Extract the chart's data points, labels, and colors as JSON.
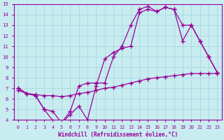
{
  "background_color": "#c8ecf0",
  "grid_color": "#aad8e0",
  "line_color": "#990099",
  "xlabel": "Windchill (Refroidissement éolien,°C)",
  "xlim": [
    -0.5,
    23.5
  ],
  "ylim": [
    4,
    15
  ],
  "xticks": [
    0,
    1,
    2,
    3,
    4,
    5,
    6,
    7,
    8,
    9,
    10,
    11,
    12,
    13,
    14,
    15,
    16,
    17,
    18,
    19,
    20,
    21,
    22,
    23
  ],
  "yticks": [
    4,
    5,
    6,
    7,
    8,
    9,
    10,
    11,
    12,
    13,
    14,
    15
  ],
  "line1_x": [
    0,
    1,
    2,
    3,
    4,
    5,
    6,
    7,
    8,
    9,
    10,
    11,
    12,
    13,
    14,
    15,
    16,
    17,
    18,
    19,
    20,
    21,
    22,
    23
  ],
  "line1_y": [
    7.0,
    6.5,
    6.3,
    5.0,
    4.8,
    3.7,
    4.5,
    5.3,
    4.0,
    7.2,
    9.8,
    10.4,
    10.8,
    11.0,
    14.2,
    14.5,
    14.3,
    14.7,
    14.5,
    13.0,
    13.0,
    11.5,
    10.0,
    8.5
  ],
  "line2_x": [
    0,
    1,
    2,
    3,
    4,
    5,
    6,
    7,
    8,
    9,
    10,
    11,
    12,
    13,
    14,
    15,
    16,
    17,
    18,
    19,
    20,
    21,
    22,
    23
  ],
  "line2_y": [
    7.0,
    6.5,
    6.3,
    5.0,
    3.9,
    3.7,
    4.8,
    7.2,
    7.5,
    7.5,
    7.5,
    10.0,
    11.0,
    13.0,
    14.5,
    14.8,
    14.3,
    14.7,
    14.5,
    11.5,
    13.0,
    11.5,
    10.0,
    8.5
  ],
  "line3_x": [
    0,
    1,
    2,
    3,
    4,
    5,
    6,
    7,
    8,
    9,
    10,
    11,
    12,
    13,
    14,
    15,
    16,
    17,
    18,
    19,
    20,
    21,
    22,
    23
  ],
  "line3_y": [
    6.8,
    6.5,
    6.4,
    6.3,
    6.3,
    6.2,
    6.3,
    6.5,
    6.6,
    6.8,
    7.0,
    7.1,
    7.3,
    7.5,
    7.7,
    7.9,
    8.0,
    8.1,
    8.2,
    8.3,
    8.4,
    8.4,
    8.4,
    8.4
  ]
}
